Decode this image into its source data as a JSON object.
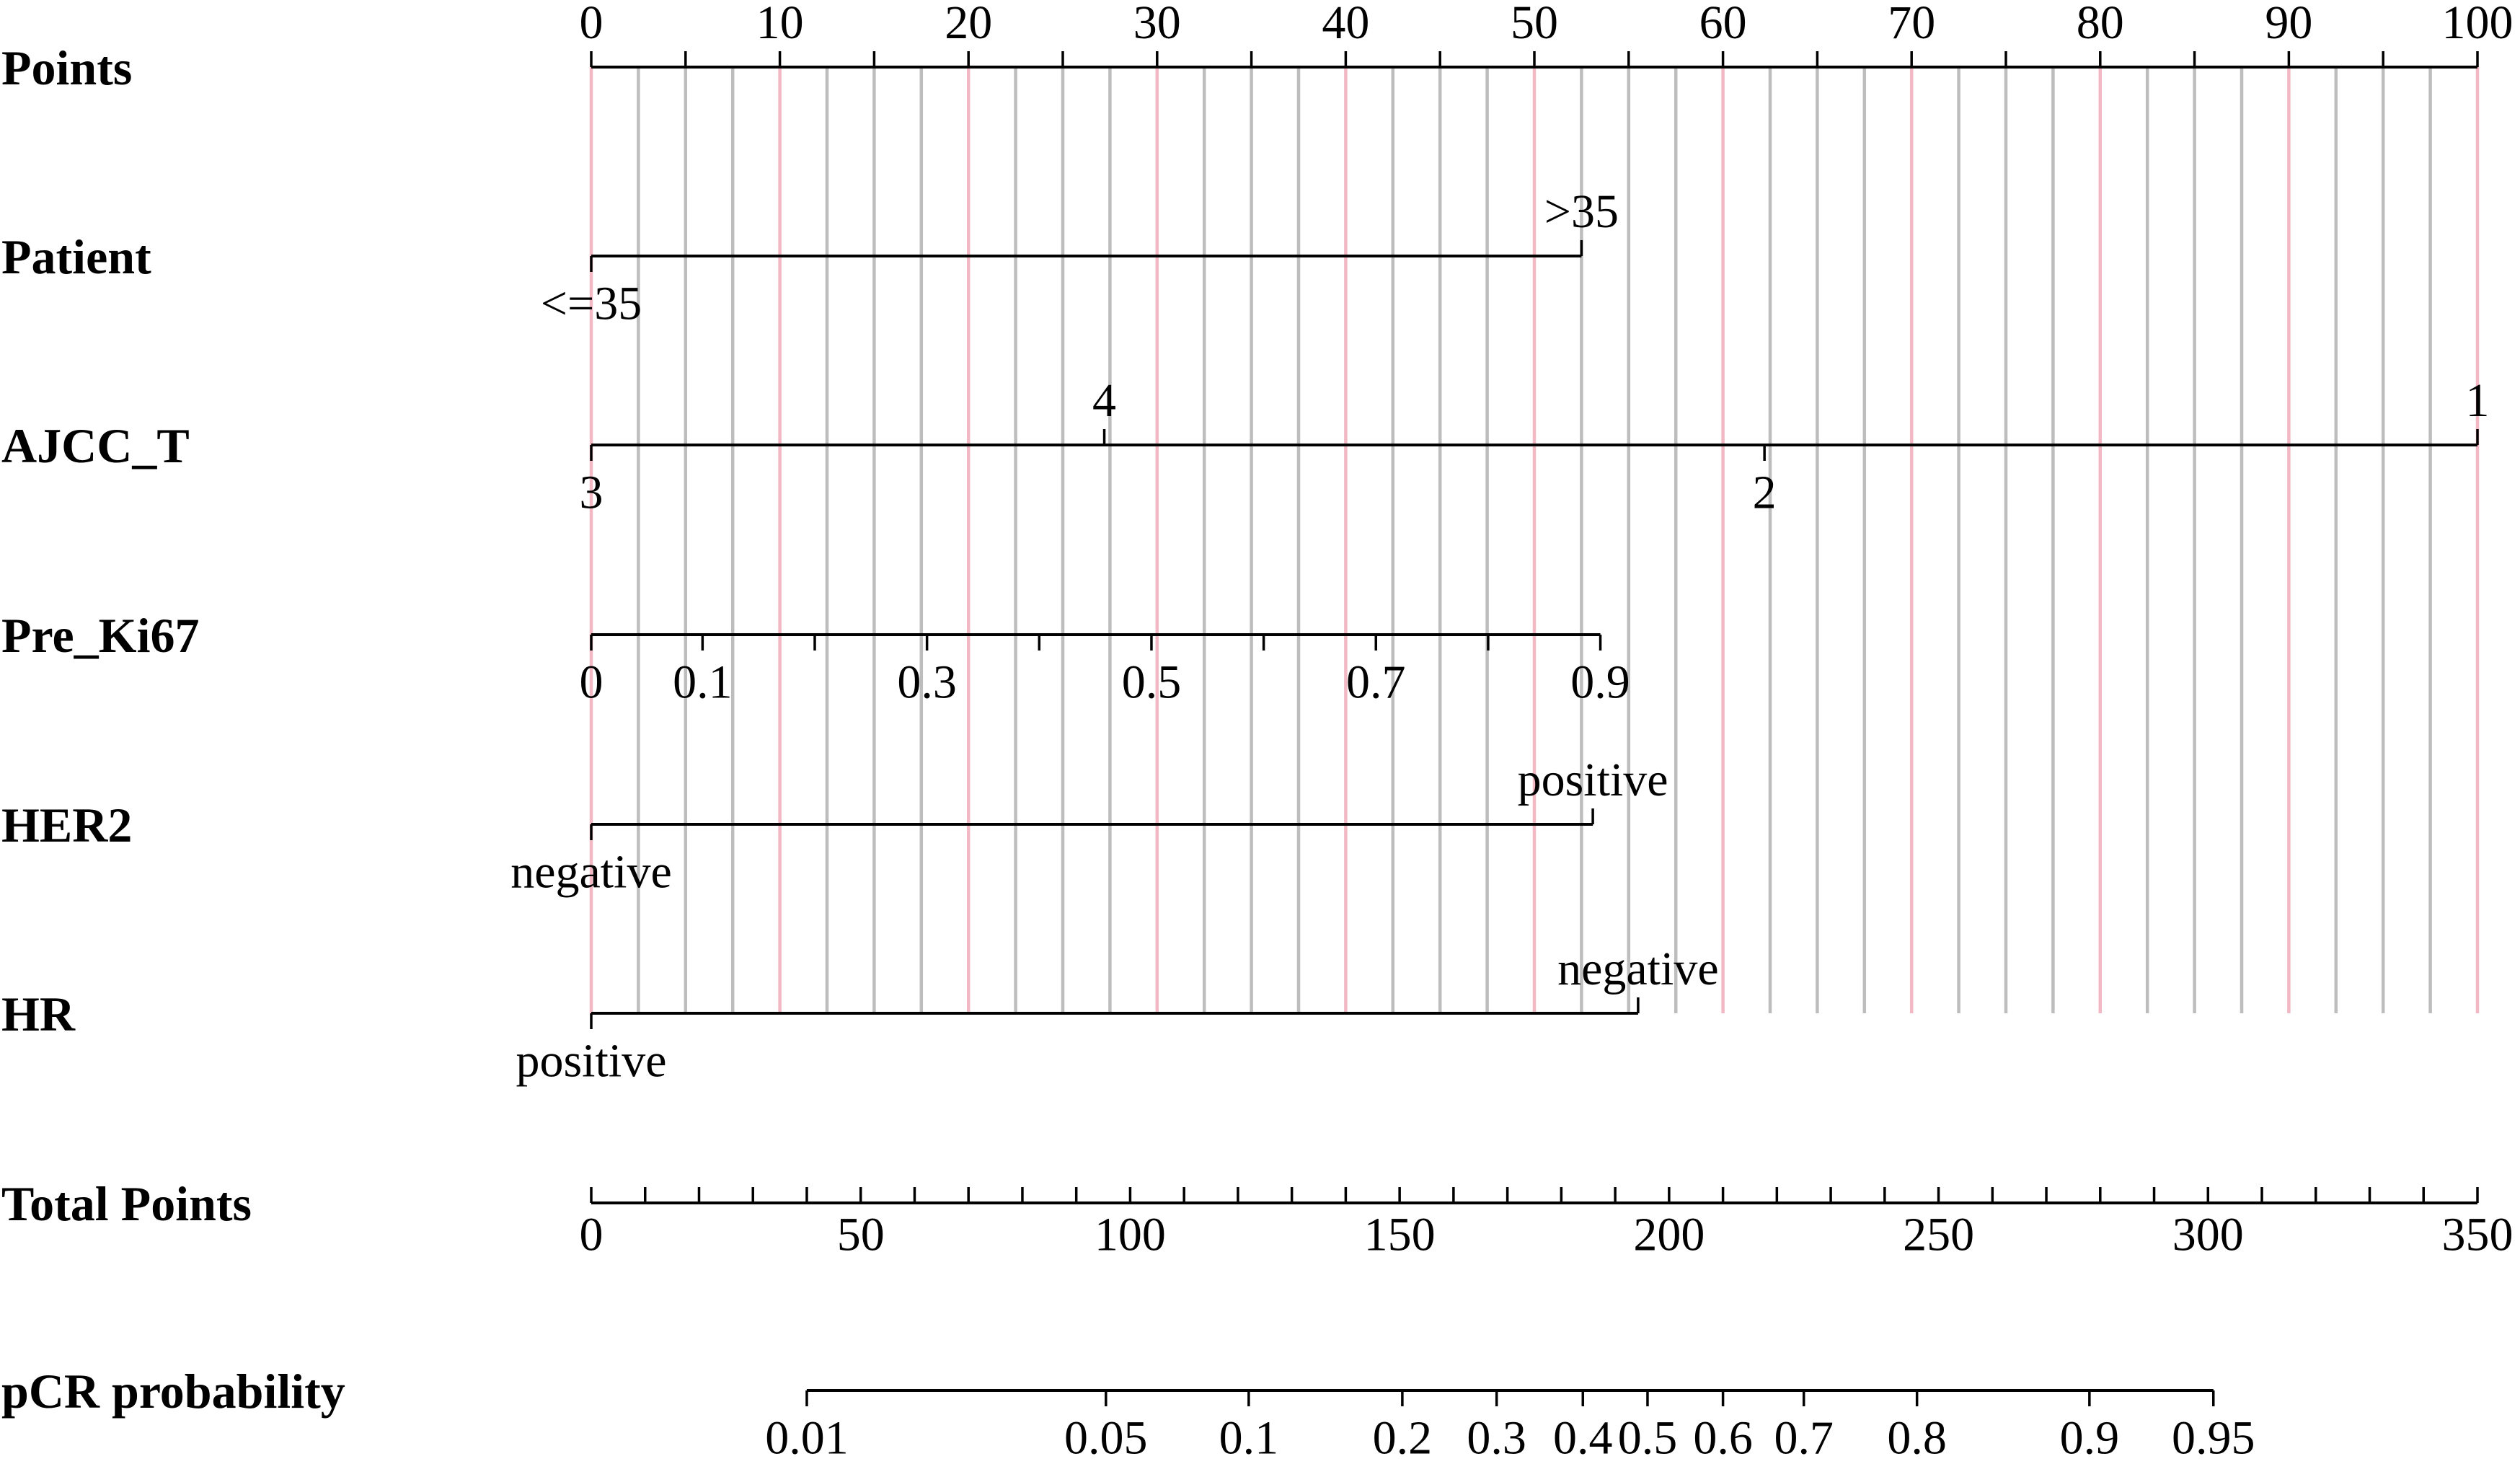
{
  "chart_data": {
    "type": "nomogram",
    "points_scale": {
      "label": "Points",
      "min": 0,
      "max": 100,
      "labeled_ticks": [
        0,
        10,
        20,
        30,
        40,
        50,
        60,
        70,
        80,
        90,
        100
      ],
      "minor_step": 2.5,
      "grid": true
    },
    "variables": [
      {
        "label": "Patient",
        "line_range": [
          0,
          52.5
        ],
        "ticks": [
          {
            "text": "<=35",
            "points": 0,
            "side": "below"
          },
          {
            "text": ">35",
            "points": 52.5,
            "side": "above"
          }
        ]
      },
      {
        "label": "AJCC_T",
        "line_range": [
          0,
          100
        ],
        "ticks": [
          {
            "text": "3",
            "points": 0,
            "side": "below"
          },
          {
            "text": "4",
            "points": 27.2,
            "side": "above"
          },
          {
            "text": "2",
            "points": 62.2,
            "side": "below"
          },
          {
            "text": "1",
            "points": 100,
            "side": "above"
          }
        ]
      },
      {
        "label": "Pre_Ki67",
        "line_range": [
          0,
          53.5
        ],
        "minor_tick_values": [
          0.2,
          0.4,
          0.6,
          0.8
        ],
        "ticks": [
          {
            "text": "0",
            "points": 0,
            "side": "below"
          },
          {
            "text": "0.1",
            "points": 5.9,
            "side": "below"
          },
          {
            "text": "0.3",
            "points": 17.8,
            "side": "below"
          },
          {
            "text": "0.5",
            "points": 29.7,
            "side": "below"
          },
          {
            "text": "0.7",
            "points": 41.6,
            "side": "below"
          },
          {
            "text": "0.9",
            "points": 53.5,
            "side": "below"
          }
        ]
      },
      {
        "label": "HER2",
        "line_range": [
          0,
          53.1
        ],
        "ticks": [
          {
            "text": "negative",
            "points": 0,
            "side": "below"
          },
          {
            "text": "positive",
            "points": 53.1,
            "side": "above"
          }
        ]
      },
      {
        "label": "HR",
        "line_range": [
          0,
          55.5
        ],
        "ticks": [
          {
            "text": "positive",
            "points": 0,
            "side": "below"
          },
          {
            "text": "negative",
            "points": 55.5,
            "side": "above"
          }
        ]
      }
    ],
    "total_points": {
      "label": "Total Points",
      "min": 0,
      "max": 350,
      "labeled_ticks": [
        0,
        50,
        100,
        150,
        200,
        250,
        300,
        350
      ],
      "minor_step": 10
    },
    "probability": {
      "label": "pCR probability",
      "ticks": [
        {
          "text": "0.01",
          "total_points": 40
        },
        {
          "text": "0.05",
          "total_points": 95.5
        },
        {
          "text": "0.1",
          "total_points": 122
        },
        {
          "text": "0.2",
          "total_points": 150.5
        },
        {
          "text": "0.3",
          "total_points": 168
        },
        {
          "text": "0.4",
          "total_points": 184
        },
        {
          "text": "0.5",
          "total_points": 196
        },
        {
          "text": "0.6",
          "total_points": 210
        },
        {
          "text": "0.7",
          "total_points": 225
        },
        {
          "text": "0.8",
          "total_points": 246
        },
        {
          "text": "0.9",
          "total_points": 278
        },
        {
          "text": "0.95",
          "total_points": 301
        }
      ]
    },
    "colors": {
      "major_grid": "#f2b8c4",
      "minor_grid": "#bdbdbd",
      "axis": "#000000"
    }
  }
}
